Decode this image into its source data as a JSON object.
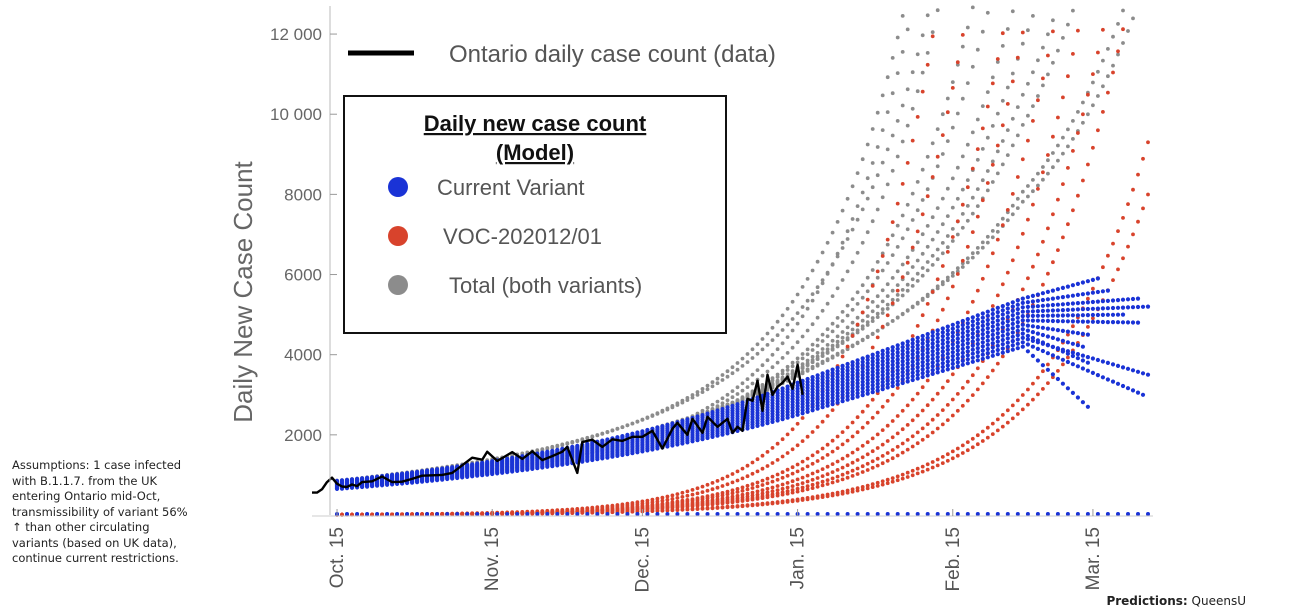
{
  "chart_data": {
    "type": "scatter",
    "ylabel": "Daily New Case Count",
    "ylim": [
      0,
      12700
    ],
    "yticks": [
      2000,
      4000,
      6000,
      8000,
      10000,
      12000
    ],
    "ytick_labels": [
      "2000",
      "4000",
      "6000",
      "8000",
      "10 000",
      "12 000"
    ],
    "x_start": "2020-10-10",
    "x_end": "2021-03-27",
    "xticks": [
      "2020-10-15",
      "2020-11-15",
      "2020-12-15",
      "2021-01-15",
      "2021-02-15",
      "2021-03-15"
    ],
    "xtick_labels": [
      "Oct. 15",
      "Nov. 15",
      "Dec. 15",
      "Jan. 15",
      "Feb. 15",
      "Mar. 15"
    ],
    "grid": false,
    "data_legend": {
      "label": "Ontario daily case count (data)",
      "color": "#000000"
    },
    "legend": {
      "title_line1": "Daily new case count",
      "title_line2": "(Model)",
      "placement": "upper-left",
      "entries": [
        {
          "label": "Current Variant",
          "color": "#1a33d6"
        },
        {
          "label": "VOC-202012/01",
          "color": "#d8432c"
        },
        {
          "label": "Total (both variants)",
          "color": "#8c8c8c"
        }
      ]
    },
    "series": [
      {
        "name": "Ontario daily case count (data)",
        "kind": "line",
        "color": "#000000",
        "points": [
          [
            "2020-10-10",
            560
          ],
          [
            "2020-10-11",
            560
          ],
          [
            "2020-10-12",
            640
          ],
          [
            "2020-10-13",
            820
          ],
          [
            "2020-10-14",
            930
          ],
          [
            "2020-10-15",
            780
          ],
          [
            "2020-10-16",
            710
          ],
          [
            "2020-10-17",
            700
          ],
          [
            "2020-10-18",
            760
          ],
          [
            "2020-10-19",
            720
          ],
          [
            "2020-10-20",
            820
          ],
          [
            "2020-10-22",
            840
          ],
          [
            "2020-10-24",
            960
          ],
          [
            "2020-10-26",
            820
          ],
          [
            "2020-10-28",
            830
          ],
          [
            "2020-10-30",
            900
          ],
          [
            "2020-11-01",
            980
          ],
          [
            "2020-11-03",
            990
          ],
          [
            "2020-11-05",
            1000
          ],
          [
            "2020-11-07",
            1050
          ],
          [
            "2020-11-09",
            1240
          ],
          [
            "2020-11-11",
            1430
          ],
          [
            "2020-11-13",
            1380
          ],
          [
            "2020-11-14",
            1580
          ],
          [
            "2020-11-16",
            1350
          ],
          [
            "2020-11-17",
            1420
          ],
          [
            "2020-11-19",
            1570
          ],
          [
            "2020-11-21",
            1400
          ],
          [
            "2020-11-23",
            1590
          ],
          [
            "2020-11-25",
            1370
          ],
          [
            "2020-11-27",
            1470
          ],
          [
            "2020-11-29",
            1580
          ],
          [
            "2020-11-30",
            1700
          ],
          [
            "2020-12-02",
            1050
          ],
          [
            "2020-12-03",
            1820
          ],
          [
            "2020-12-05",
            1880
          ],
          [
            "2020-12-07",
            1700
          ],
          [
            "2020-12-09",
            1890
          ],
          [
            "2020-12-11",
            1850
          ],
          [
            "2020-12-13",
            1950
          ],
          [
            "2020-12-15",
            1950
          ],
          [
            "2020-12-17",
            2100
          ],
          [
            "2020-12-19",
            1660
          ],
          [
            "2020-12-21",
            2150
          ],
          [
            "2020-12-22",
            2300
          ],
          [
            "2020-12-24",
            2000
          ],
          [
            "2020-12-25",
            2400
          ],
          [
            "2020-12-27",
            2050
          ],
          [
            "2020-12-28",
            2450
          ],
          [
            "2020-12-30",
            2200
          ],
          [
            "2021-01-01",
            2400
          ],
          [
            "2021-01-02",
            2050
          ],
          [
            "2021-01-03",
            2200
          ],
          [
            "2021-01-04",
            2100
          ],
          [
            "2021-01-05",
            2900
          ],
          [
            "2021-01-06",
            2850
          ],
          [
            "2021-01-07",
            3350
          ],
          [
            "2021-01-08",
            2600
          ],
          [
            "2021-01-09",
            3500
          ],
          [
            "2021-01-10",
            3000
          ],
          [
            "2021-01-11",
            3200
          ],
          [
            "2021-01-12",
            3300
          ],
          [
            "2021-01-13",
            3450
          ],
          [
            "2021-01-14",
            3150
          ],
          [
            "2021-01-15",
            3750
          ],
          [
            "2021-01-16",
            3000
          ]
        ]
      },
      {
        "name": "Current Variant",
        "kind": "scatter",
        "color": "#1a33d6",
        "model": {
          "start": "2020-10-15",
          "end_range": [
            "2021-03-13",
            "2021-03-27"
          ],
          "start_range": [
            650,
            850
          ],
          "mid": {
            "date": "2021-01-15",
            "range": [
              2500,
              3300
            ]
          },
          "peak": {
            "date": "2021-03-01",
            "range": [
              4200,
              5400
            ]
          },
          "end_values": [
            2700,
            3000,
            3500,
            3800,
            4200,
            4500,
            4800,
            5000,
            5200,
            5400,
            5600,
            5900
          ],
          "baseline": 0,
          "trajectories": 12
        }
      },
      {
        "name": "VOC-202012/01",
        "kind": "scatter",
        "color": "#d8432c",
        "model": {
          "start": "2020-10-15",
          "value_at_start": 0,
          "reach_12700_dates": [
            "2021-02-12",
            "2021-02-18",
            "2021-02-26",
            "2021-03-02",
            "2021-03-08",
            "2021-03-13",
            "2021-03-18",
            "2021-03-22"
          ],
          "slow_end_values": [
            9300,
            7000
          ],
          "trajectories": 10
        }
      },
      {
        "name": "Total (both variants)",
        "kind": "scatter",
        "color": "#8c8c8c",
        "model": "sum of Current Variant and VOC-202012/01"
      }
    ]
  },
  "assumptions": "Assumptions: 1 case infected with B.1.1.7. from the UK entering Ontario mid-Oct, transmissibility of variant 56% ↑ than other circulating variants (based on UK data), continue current restrictions.",
  "credit": {
    "label": "Predictions:",
    "source": "QueensU"
  }
}
